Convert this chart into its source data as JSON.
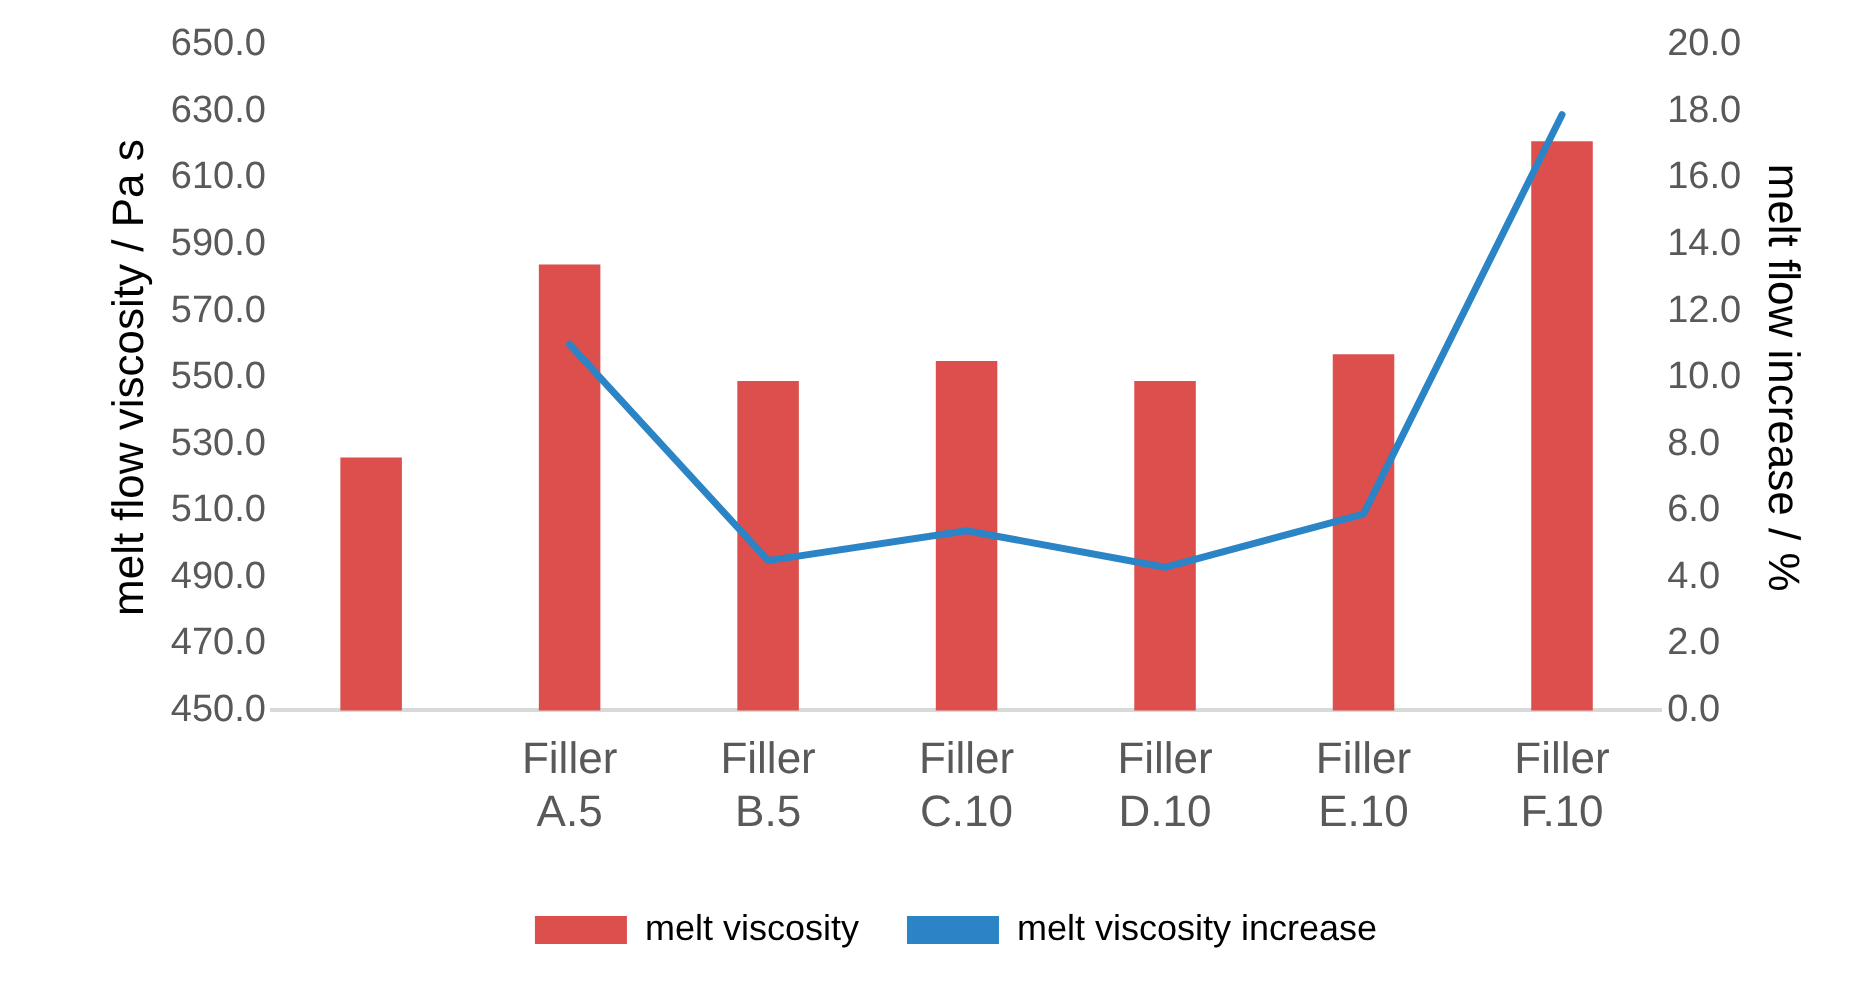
{
  "chart_data": {
    "type": "bar",
    "ylabel": "melt flow viscosity / Pa s",
    "y2label": "melt flow increase / %",
    "categories": [
      null,
      "Filler A.5",
      "Filler B.5",
      "Filler C.10",
      "Filler D.10",
      "Filler E.10",
      "Filler F.10"
    ],
    "series": [
      {
        "name": "melt viscosity",
        "color": "#dd4f4c",
        "values": [
          526,
          584,
          549,
          555,
          549,
          557,
          621
        ]
      },
      {
        "name": "melt viscosity increase",
        "type": "line",
        "axis": "y2",
        "color": "#2a84c6",
        "values": [
          null,
          11.0,
          4.5,
          5.4,
          4.3,
          5.9,
          17.9
        ]
      }
    ],
    "ylim": [
      450,
      650
    ],
    "yticks": [
      {
        "value": 450,
        "label": "450.0"
      },
      {
        "value": 470,
        "label": "470.0"
      },
      {
        "value": 490,
        "label": "490.0"
      },
      {
        "value": 510,
        "label": "510.0"
      },
      {
        "value": 530,
        "label": "530.0"
      },
      {
        "value": 550,
        "label": "550.0"
      },
      {
        "value": 570,
        "label": "570.0"
      },
      {
        "value": 590,
        "label": "590.0"
      },
      {
        "value": 610,
        "label": "610.0"
      },
      {
        "value": 630,
        "label": "630.0"
      },
      {
        "value": 650,
        "label": "650.0"
      }
    ],
    "y2lim": [
      0,
      20
    ],
    "y2ticks": [
      {
        "value": 0,
        "label": "0.0"
      },
      {
        "value": 2,
        "label": "2.0"
      },
      {
        "value": 4,
        "label": "4.0"
      },
      {
        "value": 6,
        "label": "6.0"
      },
      {
        "value": 8,
        "label": "8.0"
      },
      {
        "value": 10,
        "label": "10.0"
      },
      {
        "value": 12,
        "label": "12.0"
      },
      {
        "value": 14,
        "label": "14.0"
      },
      {
        "value": 16,
        "label": "16.0"
      },
      {
        "value": 18,
        "label": "18.0"
      },
      {
        "value": 20,
        "label": "20.0"
      }
    ],
    "grid": false,
    "legend": "bottom"
  }
}
